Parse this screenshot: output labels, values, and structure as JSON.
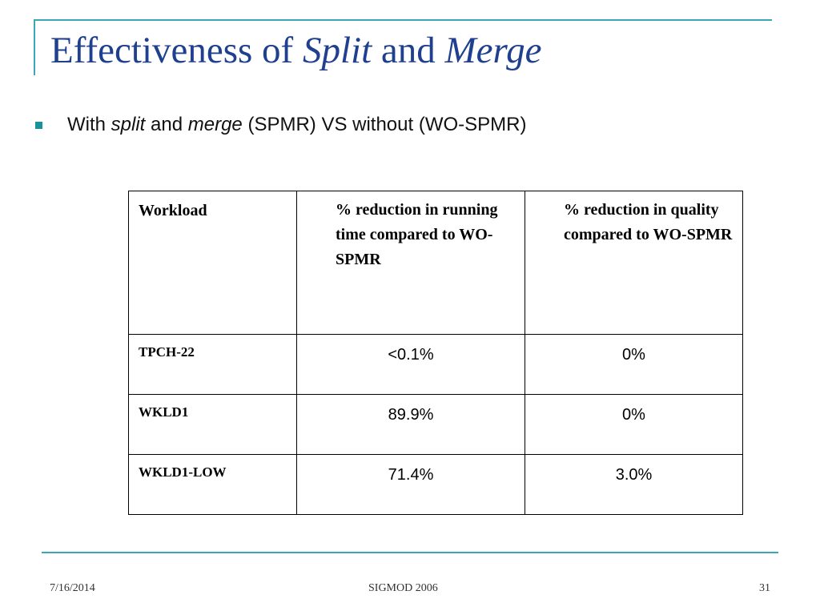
{
  "slide": {
    "title": {
      "prefix": "Effectiveness of ",
      "split": "Split",
      "and": " and ",
      "merge": "Merge"
    },
    "bullet": {
      "prefix": "With ",
      "split": "split",
      "and": " and ",
      "merge": "merge",
      "suffix": " (SPMR) VS without (WO-SPMR)"
    },
    "table": {
      "headers": [
        "Workload",
        "% reduction in running time compared to WO-SPMR",
        "% reduction in quality compared to WO-SPMR"
      ],
      "rows": [
        {
          "workload": "TPCH-22",
          "time": "<0.1%",
          "quality": "0%"
        },
        {
          "workload": "WKLD1",
          "time": "89.9%",
          "quality": "0%"
        },
        {
          "workload": "WKLD1-LOW",
          "time": "71.4%",
          "quality": "3.0%"
        }
      ]
    },
    "footer": {
      "date": "7/16/2014",
      "center": "SIGMOD 2006",
      "page": "31"
    },
    "colors": {
      "title": "#1f3f8f",
      "accent": "#3aa6b7",
      "bullet": "#17949b"
    }
  }
}
